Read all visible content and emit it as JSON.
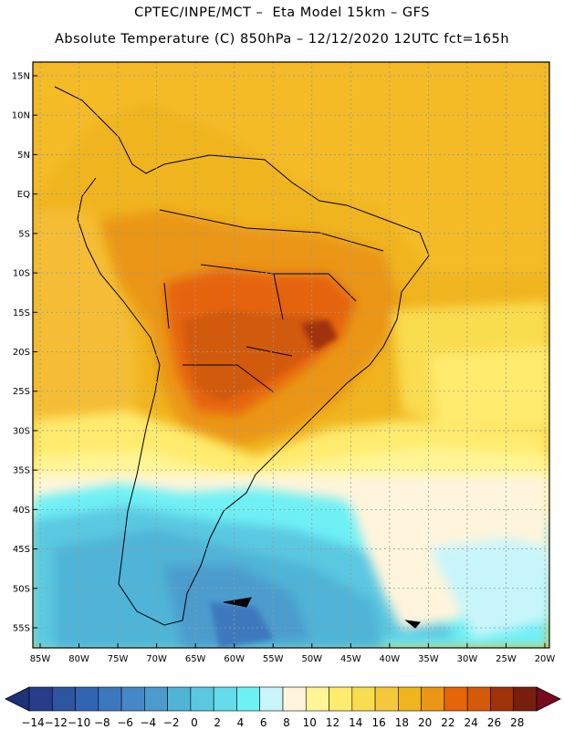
{
  "header": {
    "line1": "CPTEC/INPE/MCT –  Eta Model 15km – GFS",
    "line2": "Absolute Temperature (C) 850hPa – 12/12/2020 12UTC fct=165h"
  },
  "map": {
    "lat_labels": [
      "15N",
      "10N",
      "5N",
      "EQ",
      "5S",
      "10S",
      "15S",
      "20S",
      "25S",
      "30S",
      "35S",
      "40S",
      "45S",
      "50S",
      "55S"
    ],
    "lon_labels": [
      "85W",
      "80W",
      "75W",
      "70W",
      "65W",
      "60W",
      "55W",
      "50W",
      "45W",
      "40W",
      "35W",
      "30W",
      "25W",
      "20W"
    ],
    "gridlines": "dotted",
    "region": "South America"
  },
  "colorbar": {
    "labels": [
      "-14",
      "-12",
      "-10",
      "-8",
      "-6",
      "-4",
      "-2",
      "0",
      "2",
      "4",
      "6",
      "8",
      "10",
      "12",
      "14",
      "16",
      "18",
      "20",
      "22",
      "24",
      "26",
      "28"
    ],
    "colors": [
      "#283c8c",
      "#2d55a0",
      "#3264b4",
      "#3c78be",
      "#4687c8",
      "#4b9bcd",
      "#50b4d7",
      "#5ac8e1",
      "#64dceb",
      "#6ef0f5",
      "#c8f5fa",
      "#fff5dc",
      "#fff596",
      "#ffeb6e",
      "#fadc50",
      "#f5c83c",
      "#f0b41e",
      "#eb9614",
      "#e6640a",
      "#d25a0a",
      "#a0320a",
      "#781e0f"
    ],
    "under_color": "#1e3278",
    "over_color": "#780a1e"
  }
}
